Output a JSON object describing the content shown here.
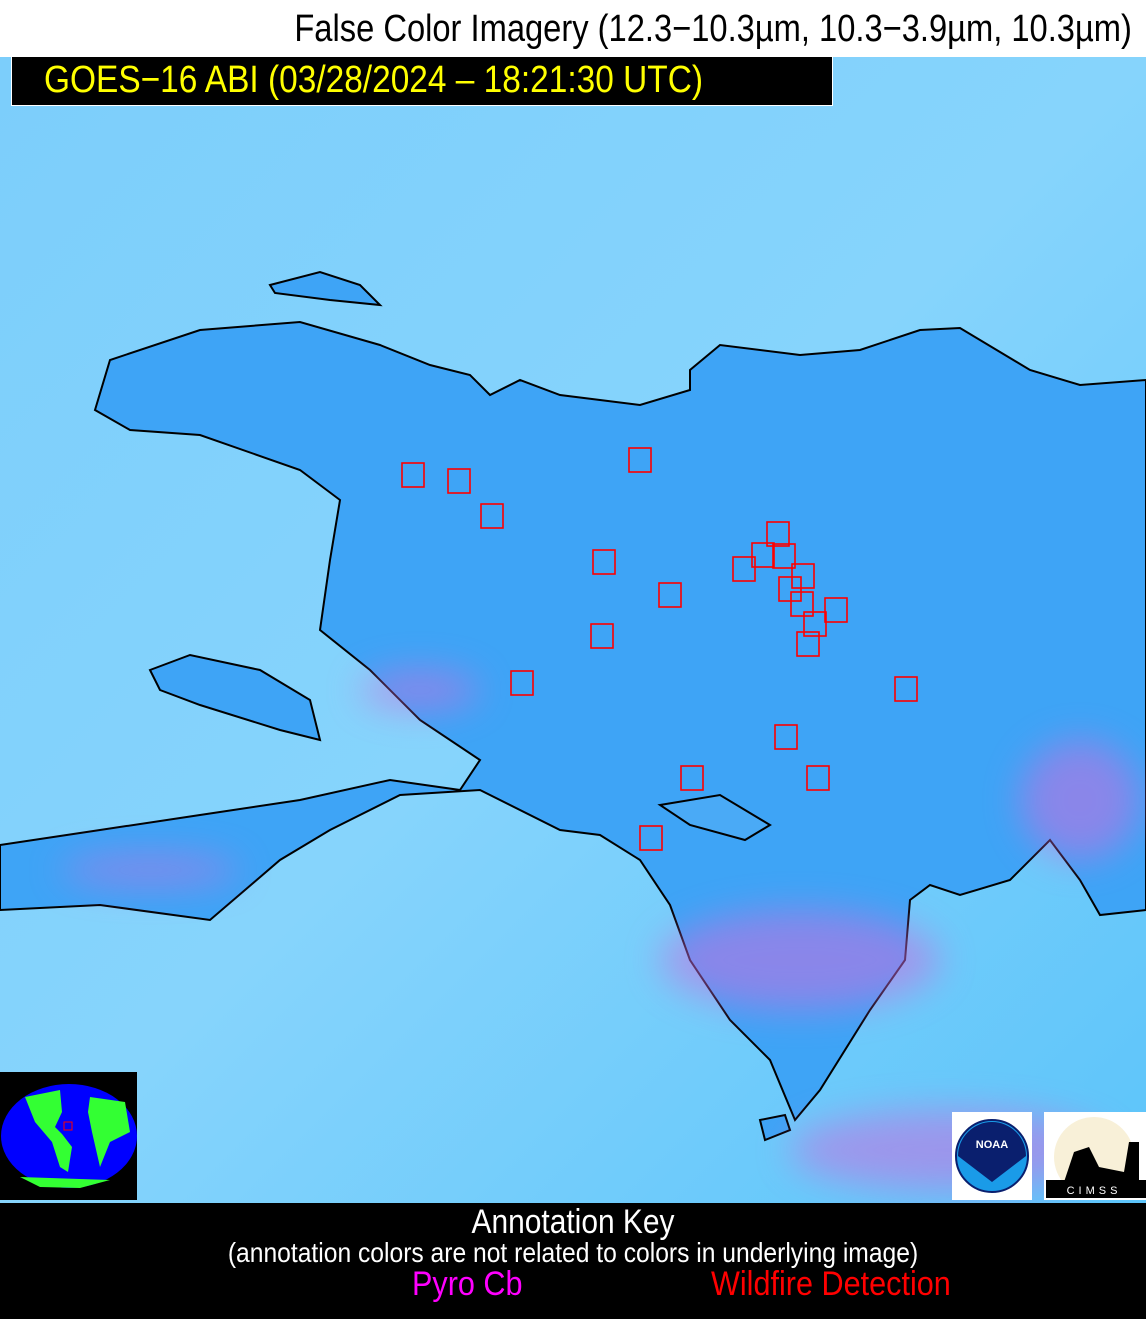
{
  "header": {
    "title": "False Color Imagery (12.3−10.3µm, 10.3−3.9µm, 10.3µm)",
    "satellite_label": "GOES−16 ABI (03/28/2024 – 18:21:30 UTC)"
  },
  "map": {
    "region": "Hispaniola",
    "colors": {
      "ocean": "#7fd0fb",
      "land": "#3aa0f5",
      "pyro_tint": "#c86ee0",
      "coastline": "#000000",
      "detection_box": "#ff0000"
    }
  },
  "logos": {
    "noaa": "NOAA",
    "cimss": "CIMSS"
  },
  "annotation_key": {
    "title": "Annotation Key",
    "subtitle": "(annotation colors are not related to colors in underlying image)",
    "pyro_cb": {
      "label": "Pyro Cb",
      "color": "#ff00ff"
    },
    "wildfire": {
      "label": "Wildfire Detection",
      "color": "#ff0000"
    }
  }
}
